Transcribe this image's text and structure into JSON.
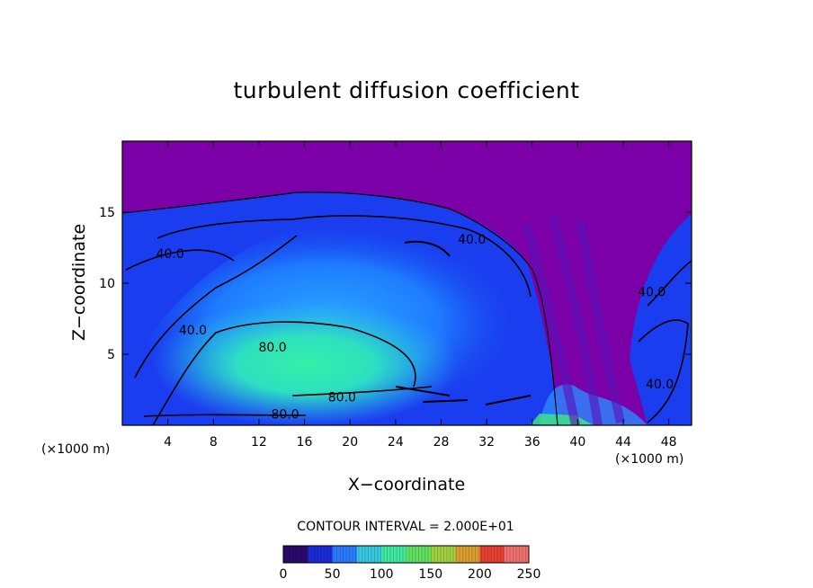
{
  "chart_data": {
    "type": "heatmap",
    "title": "turbulent diffusion coefficient",
    "xlabel": "X−coordinate",
    "ylabel": "Z−coordinate",
    "x_unit": "(×1000 m)",
    "xlim": [
      0,
      50
    ],
    "ylim": [
      0,
      20
    ],
    "x_ticks": [
      4,
      8,
      12,
      16,
      20,
      24,
      28,
      32,
      36,
      40,
      44,
      48
    ],
    "y_ticks": [
      5,
      10,
      15
    ],
    "contour_interval_text": "CONTOUR INTERVAL = 2.000E+01",
    "contour_interval": 20,
    "contour_labels": [
      {
        "text": "40.0",
        "x": 4.2,
        "z": 12.1
      },
      {
        "text": "40.0",
        "x": 30.7,
        "z": 13.1
      },
      {
        "text": "40.0",
        "x": 6.2,
        "z": 6.7
      },
      {
        "text": "40.0",
        "x": 46.5,
        "z": 9.4
      },
      {
        "text": "40.0",
        "x": 47.2,
        "z": 2.9
      },
      {
        "text": "80.0",
        "x": 13.2,
        "z": 5.5
      },
      {
        "text": "80.0",
        "x": 19.3,
        "z": 2.0
      },
      {
        "text": "80.0",
        "x": 14.3,
        "z": 0.8
      }
    ],
    "colorbar": {
      "min": 0,
      "max": 250,
      "ticks": [
        0,
        50,
        100,
        150,
        200,
        250
      ],
      "colors": [
        "#2a0a6b",
        "#1c2bd8",
        "#2a7aff",
        "#36c8e0",
        "#40e8a0",
        "#60e060",
        "#a0d040",
        "#d8a030",
        "#e84030",
        "#f07070"
      ]
    },
    "background_color": "#7b00a8"
  }
}
